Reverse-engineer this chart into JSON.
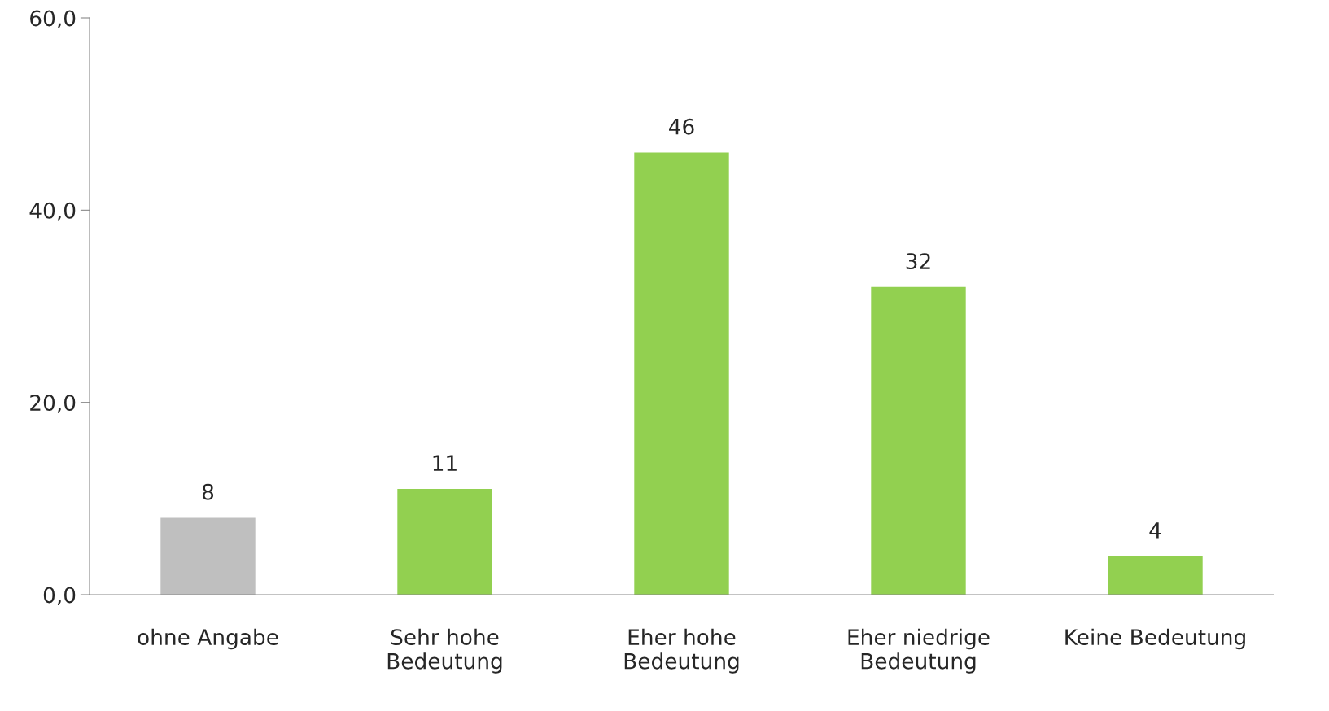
{
  "chart_data": {
    "type": "bar",
    "categories": [
      "ohne Angabe",
      "Sehr hohe\nBedeutung",
      "Eher hohe\nBedeutung",
      "Eher niedrige\nBedeutung",
      "Keine Bedeutung"
    ],
    "values": [
      8,
      11,
      46,
      32,
      4
    ],
    "colors": [
      "#bfbfbf",
      "#92d050",
      "#92d050",
      "#92d050",
      "#92d050"
    ],
    "ylim": [
      0,
      60
    ],
    "yticks": [
      {
        "value": 0,
        "label": "0,0"
      },
      {
        "value": 20,
        "label": "20,0"
      },
      {
        "value": 40,
        "label": "40,0"
      },
      {
        "value": 60,
        "label": "60,0"
      }
    ],
    "data_labels": true,
    "grid": false,
    "legend": false
  }
}
